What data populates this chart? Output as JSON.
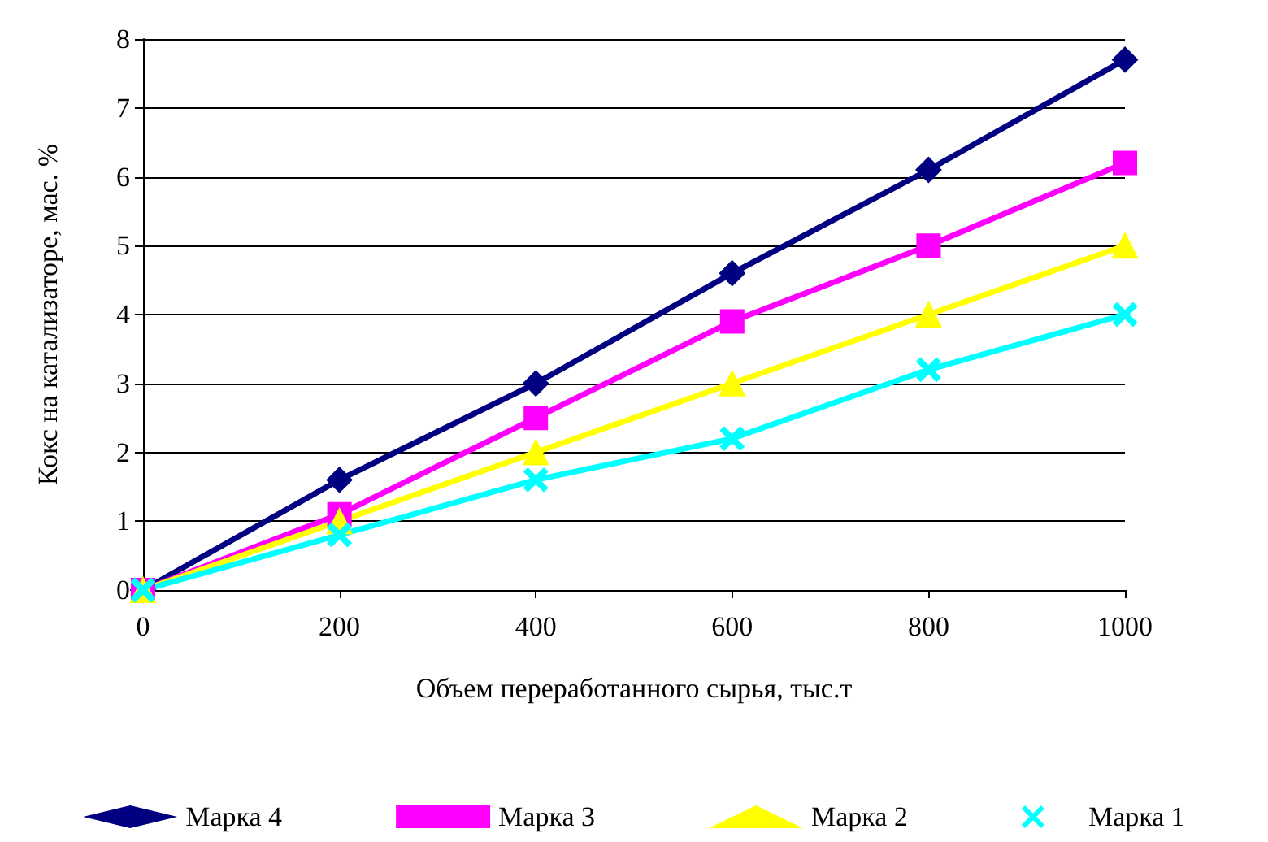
{
  "chart_data": {
    "type": "line",
    "xlabel": "Объем переработанного сырья, тыс.т",
    "ylabel": "Кокс на катализаторе, мас. %",
    "x": [
      0,
      200,
      400,
      600,
      800,
      1000
    ],
    "xlim": [
      0,
      1000
    ],
    "xticks": [
      0,
      200,
      400,
      600,
      800,
      1000
    ],
    "ylim": [
      0,
      8
    ],
    "yticks": [
      0,
      1,
      2,
      3,
      4,
      5,
      6,
      7,
      8
    ],
    "grid": "y",
    "legend": "bottom",
    "line_style": "solid",
    "series": [
      {
        "name": "Марка 4",
        "color": "#000080",
        "marker": "diamond",
        "values": [
          0,
          1.6,
          3.0,
          4.6,
          6.1,
          7.7
        ]
      },
      {
        "name": "Марка 3",
        "color": "#ff00ff",
        "marker": "square",
        "values": [
          0,
          1.1,
          2.5,
          3.9,
          5.0,
          6.2
        ]
      },
      {
        "name": "Марка 2",
        "color": "#ffff00",
        "marker": "triangle",
        "values": [
          0,
          1.0,
          2.0,
          3.0,
          4.0,
          5.0
        ]
      },
      {
        "name": "Марка 1",
        "color": "#00ffff",
        "marker": "cross",
        "values": [
          0,
          0.8,
          1.6,
          2.2,
          3.2,
          4.0
        ]
      }
    ]
  }
}
